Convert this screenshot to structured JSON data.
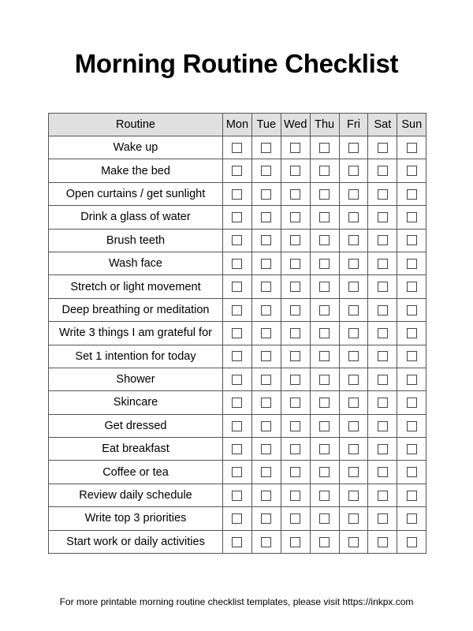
{
  "title": "Morning Routine Checklist",
  "table": {
    "headers": [
      "Routine",
      "Mon",
      "Tue",
      "Wed",
      "Thu",
      "Fri",
      "Sat",
      "Sun"
    ],
    "rows": [
      "Wake up",
      "Make the bed",
      "Open curtains / get sunlight",
      "Drink a glass of water",
      "Brush teeth",
      "Wash face",
      "Stretch or light movement",
      "Deep breathing or meditation",
      "Write 3 things I am grateful for",
      "Set 1 intention for today",
      "Shower",
      "Skincare",
      "Get dressed",
      "Eat breakfast",
      "Coffee or tea",
      "Review daily schedule",
      "Write top 3 priorities",
      "Start work or daily activities"
    ]
  },
  "footer": "For more printable morning routine checklist templates, please visit https://inkpx.com"
}
